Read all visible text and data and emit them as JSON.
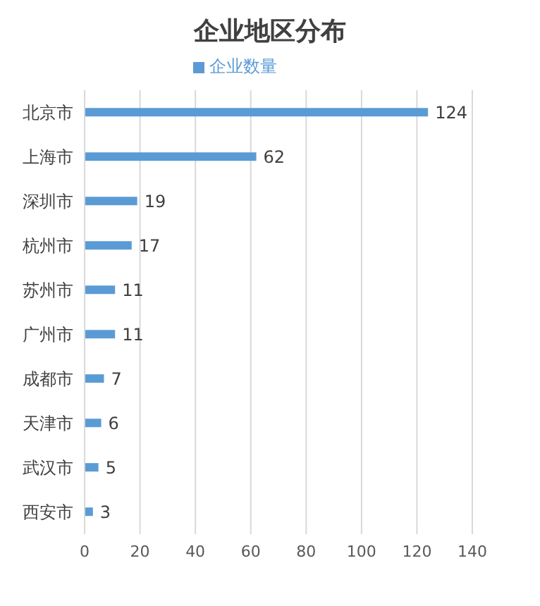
{
  "chart_data": {
    "type": "bar",
    "orientation": "horizontal",
    "title": "企业地区分布",
    "categories": [
      "北京市",
      "上海市",
      "深圳市",
      "杭州市",
      "苏州市",
      "广州市",
      "成都市",
      "天津市",
      "武汉市",
      "西安市"
    ],
    "series": [
      {
        "name": "企业数量",
        "color": "#5b9bd5",
        "values": [
          124,
          62,
          19,
          17,
          11,
          11,
          7,
          6,
          5,
          3
        ]
      }
    ],
    "xlim": [
      0,
      140
    ],
    "xticks": [
      0,
      20,
      40,
      60,
      80,
      100,
      120,
      140
    ],
    "grid": "x",
    "legend": "top",
    "data_labels": true
  }
}
